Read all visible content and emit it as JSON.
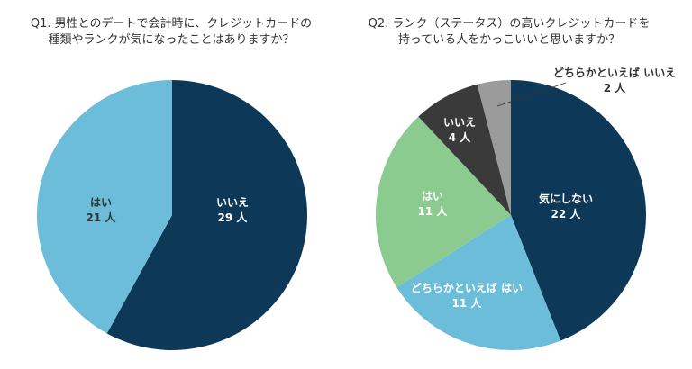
{
  "colors": {
    "navy": "#0d3858",
    "light_blue": "#6cbdd9",
    "green": "#8ccb8f",
    "dark_gray": "#3a3a3a",
    "gray": "#9b9b9b",
    "label_white": "#ffffff",
    "label_dark": "#333333"
  },
  "chart_data": [
    {
      "type": "pie",
      "title": "Q1. 男性とのデートで会計時に、クレジットカードの種類やランクが気になったことはありますか？",
      "title_lines": [
        "Q1. 男性とのデートで会計時に、クレジットカードの",
        "種類やランクが気になったことはありますか？"
      ],
      "unit": "人",
      "start": "12 o'clock",
      "direction": "clockwise",
      "slices": [
        {
          "label": "いいえ",
          "value": 29,
          "value_text": "29 人",
          "color": "#0d3858"
        },
        {
          "label": "はい",
          "value": 21,
          "value_text": "21 人",
          "color": "#6cbdd9"
        }
      ]
    },
    {
      "type": "pie",
      "title": "Q2. ランク（ステータス）の高いクレジットカードを持っている人をかっこいいと思いますか？",
      "title_lines": [
        "Q2. ランク（ステータス）の高いクレジットカードを",
        "持っている人をかっこいいと思いますか？"
      ],
      "unit": "人",
      "start": "12 o'clock",
      "direction": "clockwise",
      "slices": [
        {
          "label": "気にしない",
          "value": 22,
          "value_text": "22 人",
          "color": "#0d3858"
        },
        {
          "label": "どちらかといえば はい",
          "value": 11,
          "value_text": "11 人",
          "color": "#6cbdd9"
        },
        {
          "label": "はい",
          "value": 11,
          "value_text": "11 人",
          "color": "#8ccb8f"
        },
        {
          "label": "いいえ",
          "value": 4,
          "value_text": "4 人",
          "color": "#3a3a3a"
        },
        {
          "label": "どちらかといえば いいえ",
          "value": 2,
          "value_text": "2 人",
          "color": "#9b9b9b"
        }
      ]
    }
  ]
}
